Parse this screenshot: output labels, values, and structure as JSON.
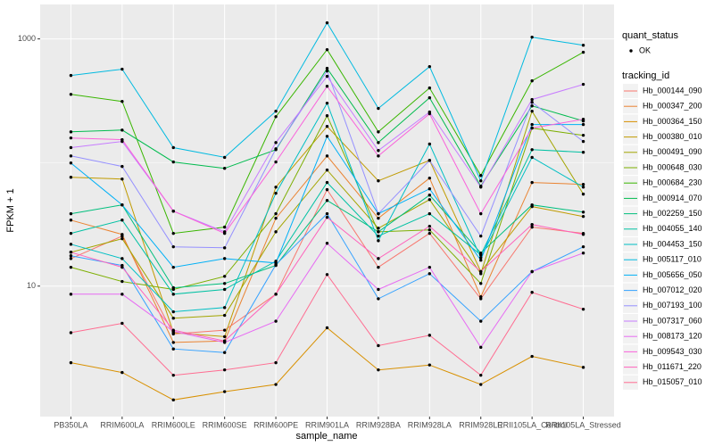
{
  "chart_data": {
    "type": "line",
    "y_label": "FPKM + 1",
    "x_label": "sample_name",
    "log_y": true,
    "grid": true,
    "ylim": [
      0.88,
      1900
    ],
    "yticks": [
      10,
      1000
    ],
    "categories": [
      "PB350LA",
      "RRIM600LA",
      "RRIM600LE",
      "RRIM600SE",
      "RRIM600PE",
      "RRIM901LA",
      "RRIM928BA",
      "RRIM928LA",
      "RRIM928LE",
      "RRII105LA_Control",
      "RRII105LA_Stressed"
    ],
    "point_legend": {
      "title": "quant_status",
      "entries": [
        "OK"
      ],
      "color": "#000000"
    },
    "legend_title": "tracking_id",
    "series": [
      {
        "name": "Hb_000144_090",
        "color": "#F8766D",
        "values": [
          16.7,
          25.4,
          4.1,
          4.4,
          8.6,
          60.3,
          14.2,
          26.7,
          7.9,
          30.0,
          26.7
        ]
      },
      {
        "name": "Hb_000347_200",
        "color": "#EA8331",
        "values": [
          34.2,
          26.2,
          3.5,
          3.6,
          35.4,
          113,
          35.4,
          74.8,
          8.2,
          68.9,
          66.5
        ]
      },
      {
        "name": "Hb_000364_150",
        "color": "#D89000",
        "values": [
          2.4,
          2.0,
          1.2,
          1.4,
          1.6,
          4.6,
          2.1,
          2.3,
          1.6,
          2.7,
          2.2
        ]
      },
      {
        "name": "Hb_000380_010",
        "color": "#C09B00",
        "values": [
          76,
          73.5,
          4.2,
          3.9,
          63.2,
          196,
          71.1,
          104,
          13.1,
          44,
          36.6
        ]
      },
      {
        "name": "Hb_000491_090",
        "color": "#A3A500",
        "values": [
          18.8,
          24.2,
          5.5,
          5.8,
          27.5,
          86.9,
          29.4,
          50.1,
          12.6,
          260,
          55.5
        ]
      },
      {
        "name": "Hb_000648_030",
        "color": "#7CAE00",
        "values": [
          14.2,
          10.9,
          9.4,
          12.0,
          38.5,
          239,
          27.5,
          28.5,
          10.5,
          190,
          166
        ]
      },
      {
        "name": "Hb_000684_230",
        "color": "#39B600",
        "values": [
          356,
          312,
          26.7,
          30.0,
          235,
          819,
          177,
          401,
          78.5,
          458,
          780
        ]
      },
      {
        "name": "Hb_000914_070",
        "color": "#00BB4E",
        "values": [
          177,
          183,
          101,
          89.7,
          127,
          578,
          145,
          334,
          64.4,
          287,
          217
        ]
      },
      {
        "name": "Hb_002259_150",
        "color": "#00BF7D",
        "values": [
          38.5,
          45.4,
          9.7,
          10.5,
          14.7,
          49.3,
          27.5,
          54.5,
          18.5,
          45.4,
          39.7
        ]
      },
      {
        "name": "Hb_004055_140",
        "color": "#00C1A3",
        "values": [
          26.7,
          34.2,
          8.6,
          9.4,
          15.9,
          68.9,
          25.4,
          38.5,
          17.9,
          127,
          121
        ]
      },
      {
        "name": "Hb_004453_150",
        "color": "#00BFC4",
        "values": [
          21.8,
          16.7,
          6.2,
          6.7,
          56.4,
          302,
          23.3,
          141,
          17.0,
          110,
          63.2
        ]
      },
      {
        "name": "Hb_005117_010",
        "color": "#00BAE0",
        "values": [
          506,
          569,
          132,
          110,
          260,
          1349,
          274,
          597,
          71.1,
          1033,
          889
        ]
      },
      {
        "name": "Hb_005656_050",
        "color": "#00B0F6",
        "values": [
          99.1,
          45.4,
          14.2,
          16.7,
          15.4,
          163,
          38.5,
          61.2,
          16.2,
          203,
          203
        ]
      },
      {
        "name": "Hb_007012_020",
        "color": "#35A2FF",
        "values": [
          17.6,
          14.7,
          3.1,
          2.9,
          14.9,
          38.5,
          7.9,
          12.6,
          5.2,
          13.1,
          20.8
        ]
      },
      {
        "name": "Hb_007193_100",
        "color": "#9590FF",
        "values": [
          113,
          92.9,
          20.8,
          20.4,
          129,
          550,
          38.5,
          104,
          25.4,
          307,
          148
        ]
      },
      {
        "name": "Hb_007317_060",
        "color": "#C77CFF",
        "values": [
          132,
          148,
          40.4,
          27.5,
          145,
          498,
          125,
          256,
          63.2,
          323,
          429
        ]
      },
      {
        "name": "Hb_008173_120",
        "color": "#E76BF3",
        "values": [
          8.6,
          8.6,
          4.3,
          3.5,
          5.2,
          22.2,
          9.4,
          14.2,
          3.2,
          13.1,
          18.5
        ]
      },
      {
        "name": "Hb_009543_030",
        "color": "#FA62DB",
        "values": [
          158,
          153,
          40.4,
          26.7,
          101,
          414,
          113,
          248,
          38.5,
          190,
          224
        ]
      },
      {
        "name": "Hb_011671_220",
        "color": "#FF62BC",
        "values": [
          18.8,
          14.2,
          4.4,
          3.6,
          8.6,
          36.0,
          16.7,
          30.5,
          13.1,
          31.5,
          26.2
        ]
      },
      {
        "name": "Hb_015057_010",
        "color": "#FF6C91",
        "values": [
          4.2,
          5.0,
          1.9,
          2.1,
          2.4,
          12.4,
          3.3,
          4.0,
          1.9,
          8.9,
          6.5
        ]
      }
    ]
  }
}
